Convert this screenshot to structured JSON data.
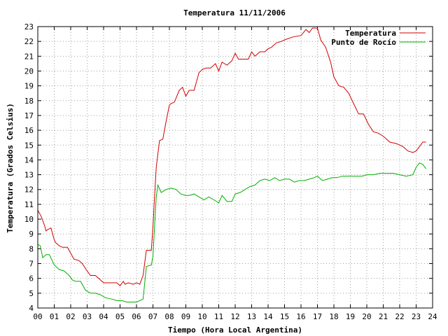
{
  "chart_data": {
    "type": "line",
    "title": "Temperatura 11/11/2006",
    "xlabel": "Tiempo (Hora Local Argentina)",
    "ylabel": "Temperatura (Grados Celsius)",
    "xlim": [
      0,
      24
    ],
    "ylim": [
      4,
      23
    ],
    "x_ticks": [
      "00",
      "01",
      "02",
      "03",
      "04",
      "05",
      "06",
      "07",
      "08",
      "09",
      "10",
      "11",
      "12",
      "13",
      "14",
      "15",
      "16",
      "17",
      "18",
      "19",
      "20",
      "21",
      "22",
      "23",
      "24"
    ],
    "y_ticks": [
      4,
      5,
      6,
      7,
      8,
      9,
      10,
      11,
      12,
      13,
      14,
      15,
      16,
      17,
      18,
      19,
      20,
      21,
      22,
      23
    ],
    "grid": true,
    "legend_position": "top-right",
    "series": [
      {
        "name": "Temperatura",
        "color": "#d00000",
        "x": [
          0,
          0.2,
          0.4,
          0.5,
          0.6,
          0.8,
          1.0,
          1.1,
          1.3,
          1.5,
          1.8,
          2.0,
          2.2,
          2.5,
          2.7,
          3.0,
          3.2,
          3.5,
          3.8,
          4.0,
          4.2,
          4.5,
          4.8,
          5.0,
          5.2,
          5.3,
          5.5,
          5.8,
          6.0,
          6.2,
          6.4,
          6.6,
          6.9,
          7.0,
          7.1,
          7.2,
          7.4,
          7.6,
          7.8,
          8.0,
          8.1,
          8.3,
          8.6,
          8.8,
          9.0,
          9.2,
          9.5,
          9.8,
          10.0,
          10.2,
          10.5,
          10.8,
          11.0,
          11.2,
          11.5,
          11.8,
          12.0,
          12.2,
          12.5,
          12.8,
          13.0,
          13.2,
          13.5,
          13.8,
          14.0,
          14.2,
          14.5,
          14.8,
          15.0,
          15.5,
          16.0,
          16.3,
          16.5,
          16.7,
          17.0,
          17.2,
          17.5,
          17.8,
          18.0,
          18.3,
          18.6,
          18.9,
          19.2,
          19.5,
          19.8,
          20.1,
          20.4,
          20.7,
          21.0,
          21.4,
          21.8,
          22.2,
          22.5,
          22.8,
          23.0,
          23.2,
          23.4,
          23.6
        ],
        "values": [
          10.6,
          10.2,
          9.6,
          9.2,
          9.3,
          9.4,
          8.6,
          8.4,
          8.2,
          8.1,
          8.1,
          7.7,
          7.3,
          7.2,
          7.0,
          6.5,
          6.2,
          6.2,
          5.9,
          5.7,
          5.7,
          5.7,
          5.7,
          5.5,
          5.8,
          5.6,
          5.7,
          5.6,
          5.7,
          5.6,
          6.2,
          7.9,
          7.9,
          9.5,
          11.5,
          13.5,
          15.3,
          15.4,
          16.6,
          17.7,
          17.8,
          17.9,
          18.7,
          18.9,
          18.3,
          18.7,
          18.7,
          19.9,
          20.1,
          20.2,
          20.2,
          20.5,
          20.0,
          20.6,
          20.4,
          20.7,
          21.2,
          20.8,
          20.8,
          20.8,
          21.3,
          21.0,
          21.3,
          21.3,
          21.5,
          21.6,
          21.9,
          22.0,
          22.1,
          22.3,
          22.4,
          22.8,
          22.6,
          22.9,
          22.9,
          22.1,
          21.6,
          20.6,
          19.6,
          19.0,
          18.9,
          18.5,
          17.8,
          17.1,
          17.1,
          16.4,
          15.9,
          15.8,
          15.6,
          15.2,
          15.1,
          14.9,
          14.6,
          14.5,
          14.6,
          14.9,
          15.2,
          15.2
        ]
      },
      {
        "name": "Punto de Rocío",
        "color": "#00b000",
        "x": [
          0,
          0.15,
          0.3,
          0.5,
          0.7,
          1.0,
          1.3,
          1.6,
          1.9,
          2.1,
          2.3,
          2.6,
          2.9,
          3.2,
          3.5,
          3.8,
          4.1,
          4.5,
          4.8,
          5.1,
          5.4,
          5.7,
          6.0,
          6.2,
          6.4,
          6.6,
          6.9,
          7.0,
          7.1,
          7.2,
          7.3,
          7.5,
          7.8,
          8.1,
          8.4,
          8.7,
          9.0,
          9.2,
          9.5,
          9.8,
          10.1,
          10.4,
          10.7,
          11.0,
          11.2,
          11.5,
          11.8,
          12.0,
          12.3,
          12.6,
          12.9,
          13.2,
          13.5,
          13.8,
          14.1,
          14.4,
          14.7,
          15.0,
          15.3,
          15.6,
          15.9,
          16.2,
          16.5,
          16.8,
          17.0,
          17.3,
          17.6,
          17.9,
          18.2,
          18.5,
          18.8,
          19.1,
          19.4,
          19.7,
          20.0,
          20.4,
          20.8,
          21.2,
          21.6,
          22.0,
          22.4,
          22.8,
          23.0,
          23.2,
          23.4,
          23.6
        ],
        "values": [
          8.3,
          8.2,
          7.4,
          7.6,
          7.6,
          6.9,
          6.6,
          6.5,
          6.2,
          5.9,
          5.8,
          5.8,
          5.2,
          5.0,
          5.0,
          4.9,
          4.7,
          4.6,
          4.5,
          4.5,
          4.4,
          4.4,
          4.4,
          4.5,
          4.6,
          6.8,
          6.9,
          7.5,
          9.5,
          11.5,
          12.3,
          11.8,
          12.0,
          12.1,
          12.0,
          11.7,
          11.6,
          11.6,
          11.7,
          11.5,
          11.3,
          11.5,
          11.3,
          11.1,
          11.6,
          11.2,
          11.2,
          11.7,
          11.8,
          12.0,
          12.2,
          12.3,
          12.6,
          12.7,
          12.6,
          12.8,
          12.6,
          12.7,
          12.7,
          12.5,
          12.6,
          12.6,
          12.7,
          12.8,
          12.9,
          12.6,
          12.7,
          12.8,
          12.8,
          12.9,
          12.9,
          12.9,
          12.9,
          12.9,
          13.0,
          13.0,
          13.1,
          13.1,
          13.1,
          13.0,
          12.9,
          13.0,
          13.5,
          13.8,
          13.7,
          13.4
        ]
      }
    ]
  }
}
